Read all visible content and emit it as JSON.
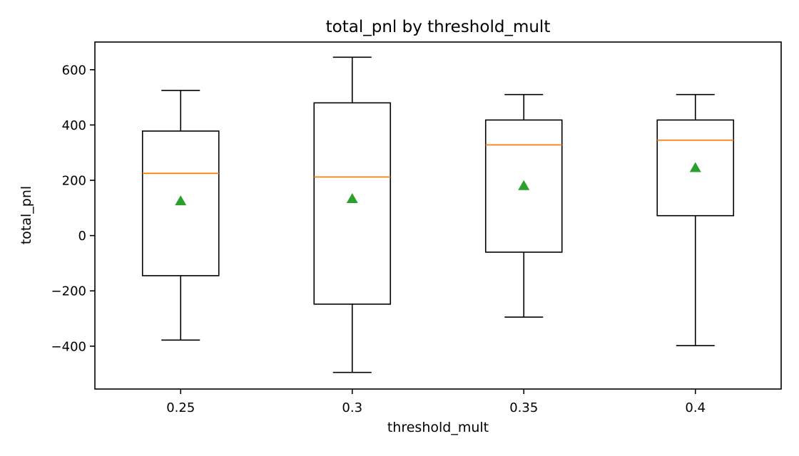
{
  "chart_data": {
    "type": "box",
    "title": "total_pnl by threshold_mult",
    "xlabel": "threshold_mult",
    "ylabel": "total_pnl",
    "ylim": [
      -555,
      700
    ],
    "yticks": [
      -400,
      -200,
      0,
      200,
      400,
      600
    ],
    "ytick_labels": [
      "−400",
      "−200",
      "0",
      "200",
      "400",
      "600"
    ],
    "categories": [
      "0.25",
      "0.3",
      "0.35",
      "0.4"
    ],
    "boxes": [
      {
        "category": "0.25",
        "whisker_low": -378,
        "q1": -145,
        "median": 225,
        "q3": 378,
        "whisker_high": 525,
        "mean": 125
      },
      {
        "category": "0.3",
        "whisker_low": -495,
        "q1": -248,
        "median": 212,
        "q3": 480,
        "whisker_high": 645,
        "mean": 133
      },
      {
        "category": "0.35",
        "whisker_low": -295,
        "q1": -60,
        "median": 328,
        "q3": 418,
        "whisker_high": 510,
        "mean": 180
      },
      {
        "category": "0.4",
        "whisker_low": -398,
        "q1": 72,
        "median": 345,
        "q3": 418,
        "whisker_high": 510,
        "mean": 245
      }
    ],
    "grid": false,
    "legend": "none",
    "colors": {
      "box": "#000000",
      "median": "#ff7f0e",
      "mean": "#2ca02c"
    }
  }
}
